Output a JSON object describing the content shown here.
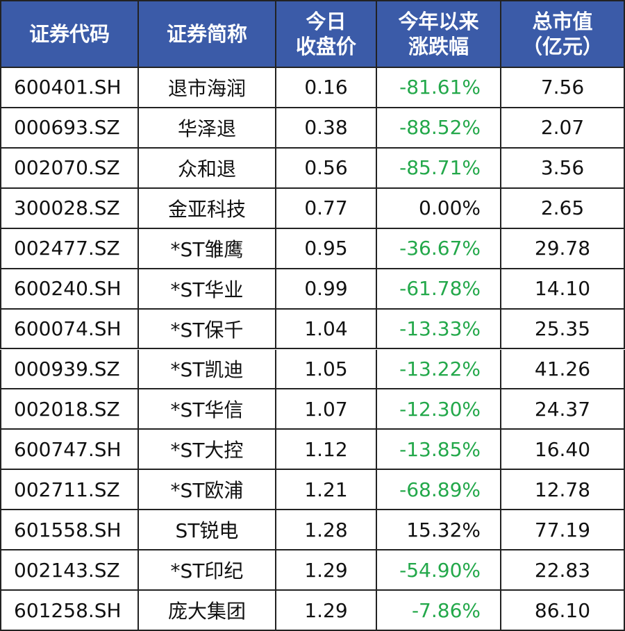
{
  "table": {
    "header": [
      [
        "证券代码"
      ],
      [
        "证券简称"
      ],
      [
        "今日",
        "收盘价"
      ],
      [
        "今年以来",
        "涨跌幅"
      ],
      [
        "总市值",
        "（亿元）"
      ]
    ],
    "rows": [
      [
        "600401.SH",
        "退市海润",
        "0.16",
        "-81.61%",
        "7.56"
      ],
      [
        "000693.SZ",
        "华泽退",
        "0.38",
        "-88.52%",
        "2.07"
      ],
      [
        "002070.SZ",
        "众和退",
        "0.56",
        "-85.71%",
        "3.56"
      ],
      [
        "300028.SZ",
        "金亚科技",
        "0.77",
        "0.00%",
        "2.65"
      ],
      [
        "002477.SZ",
        "*ST雏鹰",
        "0.95",
        "-36.67%",
        "29.78"
      ],
      [
        "600240.SH",
        "*ST华业",
        "0.99",
        "-61.78%",
        "14.10"
      ],
      [
        "600074.SH",
        "*ST保千",
        "1.04",
        "-13.33%",
        "25.35"
      ],
      [
        "000939.SZ",
        "*ST凯迪",
        "1.05",
        "-13.22%",
        "41.26"
      ],
      [
        "002018.SZ",
        "*ST华信",
        "1.07",
        "-12.30%",
        "24.37"
      ],
      [
        "600747.SH",
        "*ST大控",
        "1.12",
        "-13.85%",
        "16.40"
      ],
      [
        "002711.SZ",
        "*ST欧浦",
        "1.21",
        "-68.89%",
        "12.78"
      ],
      [
        "601558.SH",
        "ST锐电",
        "1.28",
        "15.32%",
        "77.19"
      ],
      [
        "002143.SZ",
        "*ST印纪",
        "1.29",
        "-54.90%",
        "22.83"
      ],
      [
        "601258.SH",
        "庞大集团",
        "1.29",
        "-7.86%",
        "86.10"
      ]
    ],
    "header_color": "#3b5ba8",
    "negative_color": "#23a84a"
  }
}
